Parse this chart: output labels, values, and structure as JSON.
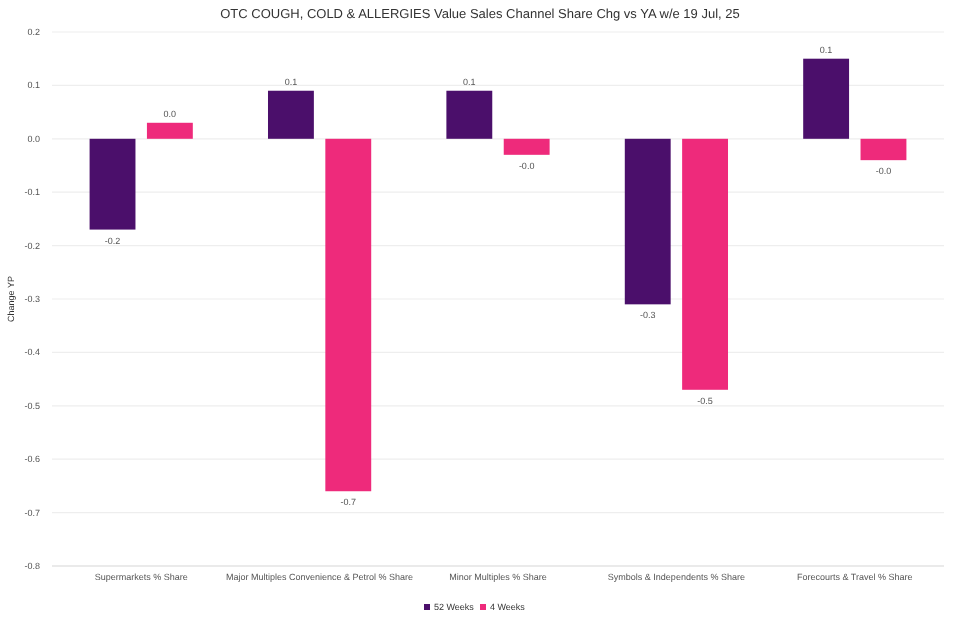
{
  "chart_data": {
    "type": "bar",
    "title": "OTC COUGH, COLD & ALLERGIES Value Sales Channel Share Chg vs YA w/e 19 Jul, 25",
    "ylabel": "Change YP",
    "categories": [
      "Supermarkets % Share",
      "Major Multiples Convenience & Petrol % Share",
      "Minor Multiples % Share",
      "Symbols & Independents % Share",
      "Forecourts & Travel % Share"
    ],
    "series": [
      {
        "name": "52 Weeks",
        "color": "#4b0f6b",
        "values": [
          -0.17,
          0.09,
          0.09,
          -0.31,
          0.15
        ],
        "value_labels": [
          "-0.2",
          "0.1",
          "0.1",
          "-0.3",
          "0.1"
        ]
      },
      {
        "name": "4 Weeks",
        "color": "#ee2a7b",
        "values": [
          0.03,
          -0.66,
          -0.03,
          -0.47,
          -0.04
        ],
        "value_labels": [
          "0.0",
          "-0.7",
          "-0.0",
          "-0.5",
          "-0.0"
        ]
      }
    ],
    "ylim": [
      -0.8,
      0.2
    ],
    "yticks": [
      {
        "value": 0.2,
        "label": "0.2"
      },
      {
        "value": 0.1,
        "label": "0.1"
      },
      {
        "value": 0,
        "label": "0.0"
      },
      {
        "value": -0.1,
        "label": "-0.1"
      },
      {
        "value": -0.2,
        "label": "-0.2"
      },
      {
        "value": -0.3,
        "label": "-0.3"
      },
      {
        "value": -0.4,
        "label": "-0.4"
      },
      {
        "value": -0.5,
        "label": "-0.5"
      },
      {
        "value": -0.6,
        "label": "-0.6"
      },
      {
        "value": -0.7,
        "label": "-0.7"
      },
      {
        "value": -0.8,
        "label": "-0.8"
      }
    ],
    "grid": "y",
    "legend": "bottom"
  }
}
